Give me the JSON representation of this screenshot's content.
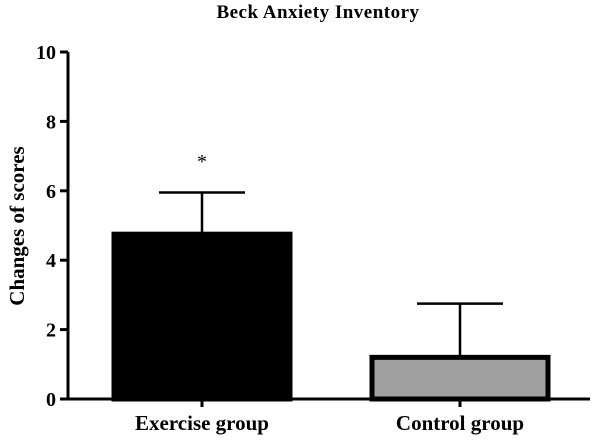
{
  "chart_data": {
    "type": "bar",
    "title": "Beck Anxiety Inventory",
    "xlabel": "",
    "ylabel": "Changes of scores",
    "ylim": [
      0,
      10
    ],
    "yticks": [
      0,
      2,
      4,
      6,
      8,
      10
    ],
    "categories": [
      "Exercise group",
      "Control group"
    ],
    "values": [
      4.75,
      1.2
    ],
    "error_upper": [
      5.95,
      2.75
    ],
    "bar_colors": [
      "#000000",
      "#a0a0a0"
    ],
    "annotations": [
      {
        "category_index": 0,
        "text": "*",
        "y": 7.0
      }
    ],
    "grid": false,
    "legend": "none"
  }
}
